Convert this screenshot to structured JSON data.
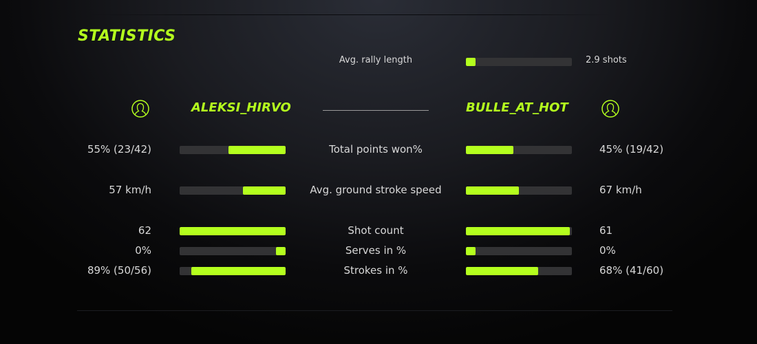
{
  "title": "STATISTICS",
  "accent": "#b4ff1e",
  "rally": {
    "label": "Avg. rally length",
    "value": "2.9 shots",
    "fill": 0.09
  },
  "players": {
    "left": {
      "name": "ALEKSI_HIRVO",
      "icon": "user-circle-icon"
    },
    "right": {
      "name": "BULLE_AT_HOT",
      "icon": "user-circle-icon"
    }
  },
  "rows": [
    {
      "label": "Total points won%",
      "left": "55% (23/42)",
      "right": "45% (19/42)",
      "left_fill": 0.54,
      "right_fill": 0.45
    },
    {
      "label": "Avg. ground stroke speed",
      "left": "57 km/h",
      "right": "67 km/h",
      "left_fill": 0.4,
      "right_fill": 0.5
    },
    {
      "label": "Shot count",
      "left": "62",
      "right": "61",
      "left_fill": 1.0,
      "right_fill": 0.98
    },
    {
      "label": "Serves in %",
      "left": "0%",
      "right": "0%",
      "left_fill": 0.09,
      "right_fill": 0.09
    },
    {
      "label": "Strokes in %",
      "left": "89% (50/56)",
      "right": "68% (41/60)",
      "left_fill": 0.89,
      "right_fill": 0.68
    }
  ]
}
